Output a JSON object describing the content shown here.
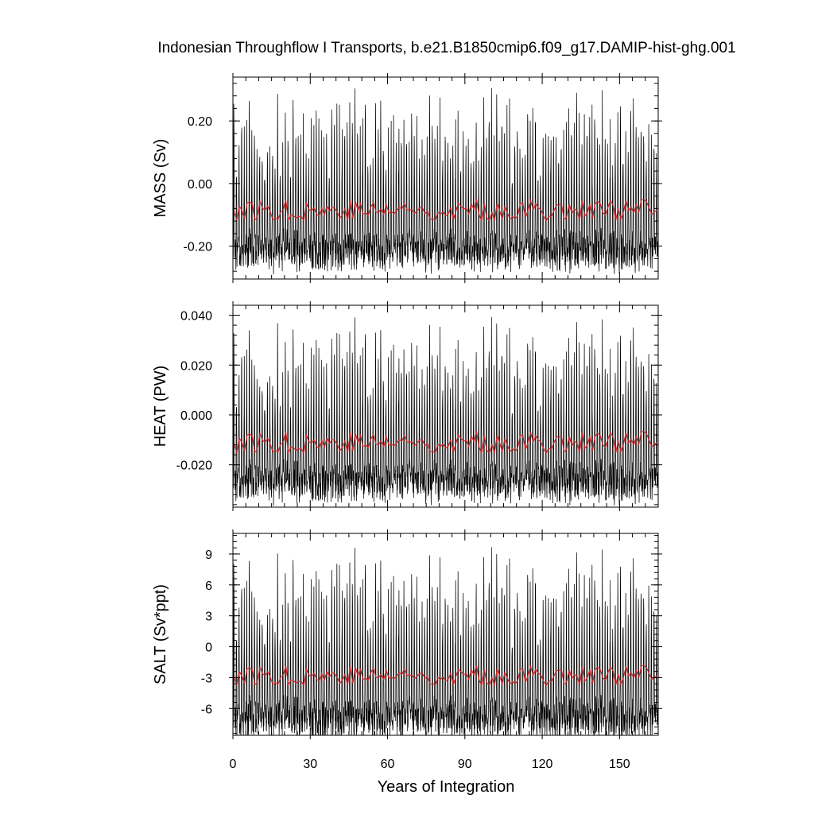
{
  "title": "Indonesian Throughflow I Transports, b.e21.B1850cmip6.f09_g17.DAMIP-hist-ghg.001",
  "xlabel": "Years of Integration",
  "colors": {
    "monthly": "#000000",
    "annual_mean": "#d62728",
    "frame": "#000000"
  },
  "chart_data": [
    {
      "type": "line",
      "panel": "MASS",
      "ylabel": "MASS (Sv)",
      "xlim": [
        0,
        165
      ],
      "ylim": [
        -0.305,
        0.34
      ],
      "x_ticks": [
        0,
        30,
        60,
        90,
        120,
        150
      ],
      "y_ticks": [
        0.2,
        0.0,
        -0.2
      ],
      "y_tick_labels": [
        "0.20",
        "0.00",
        "-0.20"
      ],
      "show_x_tick_labels": false,
      "series": [
        {
          "role": "monthly",
          "approx_mean": -0.09,
          "approx_min": -0.305,
          "approx_max": 0.335,
          "peaks": [
            [
              3.2,
              0.31
            ],
            [
              24,
              0.31
            ],
            [
              35,
              0.31
            ],
            [
              59,
              0.335
            ],
            [
              66,
              0.3
            ],
            [
              117,
              0.34
            ],
            [
              128.6,
              -0.305
            ],
            [
              111,
              0.27
            ]
          ]
        },
        {
          "role": "annual_mean",
          "approx_mean": -0.085,
          "approx_range": [
            -0.12,
            -0.05
          ]
        }
      ]
    },
    {
      "type": "line",
      "panel": "HEAT",
      "ylabel": "HEAT (PW)",
      "xlim": [
        0,
        165
      ],
      "ylim": [
        -0.037,
        0.044
      ],
      "x_ticks": [
        0,
        30,
        60,
        90,
        120,
        150
      ],
      "y_ticks": [
        0.04,
        0.02,
        0.0,
        -0.02
      ],
      "y_tick_labels": [
        "0.040",
        "0.020",
        "0.000",
        "-0.020"
      ],
      "show_x_tick_labels": false,
      "series": [
        {
          "role": "monthly",
          "approx_mean": -0.011,
          "approx_min": -0.037,
          "approx_max": 0.043,
          "peaks": [
            [
              3.2,
              0.04
            ],
            [
              24,
              0.038
            ],
            [
              35,
              0.039
            ],
            [
              59,
              0.041
            ],
            [
              62,
              0.041
            ],
            [
              117,
              0.043
            ],
            [
              128.6,
              -0.037
            ]
          ]
        },
        {
          "role": "annual_mean",
          "approx_mean": -0.011,
          "approx_range": [
            -0.015,
            -0.006
          ]
        }
      ]
    },
    {
      "type": "line",
      "panel": "SALT",
      "ylabel": "SALT (Sv*ppt)",
      "xlim": [
        0,
        165
      ],
      "ylim": [
        -8.6,
        11.0
      ],
      "x_ticks": [
        0,
        30,
        60,
        90,
        120,
        150
      ],
      "x_tick_labels": [
        "0",
        "30",
        "60",
        "90",
        "120",
        "150"
      ],
      "y_ticks": [
        9,
        6,
        3,
        0,
        -3,
        -6
      ],
      "y_tick_labels": [
        "9",
        "6",
        "3",
        "0",
        "-3",
        "-6"
      ],
      "show_x_tick_labels": true,
      "series": [
        {
          "role": "monthly",
          "approx_mean": -3.0,
          "approx_min": -8.6,
          "approx_max": 10.6,
          "peaks": [
            [
              3.2,
              9.4
            ],
            [
              24,
              9.9
            ],
            [
              35,
              9.4
            ],
            [
              59,
              10.5
            ],
            [
              66,
              9.8
            ],
            [
              117,
              10.6
            ],
            [
              128.6,
              -8.6
            ]
          ]
        },
        {
          "role": "annual_mean",
          "approx_mean": -2.8,
          "approx_range": [
            -3.6,
            -1.6
          ]
        }
      ]
    }
  ]
}
